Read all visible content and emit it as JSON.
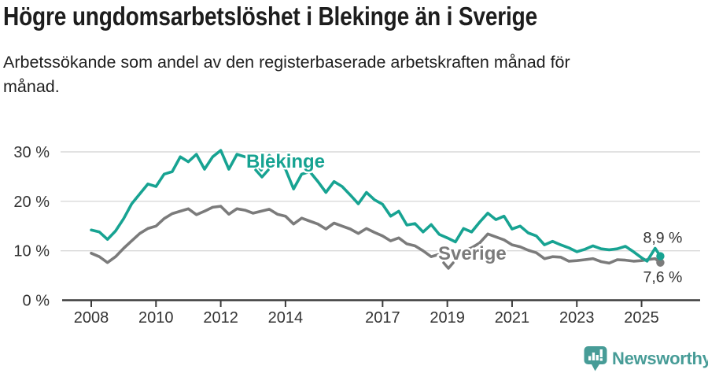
{
  "page": {
    "title": "Högre ungdomsarbetslöshet i Blekinge än i Sverige",
    "subtitle": "Arbetssökande som andel av den registerbaserade arbetskraften månad för månad."
  },
  "colors": {
    "blekinge": "#17a392",
    "sverige": "#7b7b7b",
    "axis": "#3c3c3c",
    "tick_text": "#333333",
    "grid": "#d9d9d9",
    "value_label": "#333333",
    "brand": "#479c97",
    "background": "#ffffff"
  },
  "footer": {
    "brand_name": "Newsworthy"
  },
  "chart_data": {
    "type": "line",
    "title": "Högre ungdomsarbetslöshet i Blekinge än i Sverige",
    "subtitle": "Arbetssökande som andel av den registerbaserade arbetskraften månad för månad.",
    "xlabel": "",
    "ylabel": "",
    "unit": "%",
    "grid": "horizontal",
    "legend_position": "inline-labels",
    "xlim": [
      2007.6,
      2026.3
    ],
    "ylim": [
      0,
      32
    ],
    "y_ticks": [
      {
        "value": 0,
        "label": "0 %"
      },
      {
        "value": 10,
        "label": "10 %"
      },
      {
        "value": 20,
        "label": "20 %"
      },
      {
        "value": 30,
        "label": "30 %"
      }
    ],
    "x_ticks": [
      {
        "value": 2008,
        "label": "2008"
      },
      {
        "value": 2010,
        "label": "2010"
      },
      {
        "value": 2012,
        "label": "2012"
      },
      {
        "value": 2014,
        "label": "2014"
      },
      {
        "value": 2017,
        "label": "2017"
      },
      {
        "value": 2019,
        "label": "2019"
      },
      {
        "value": 2021,
        "label": "2021"
      },
      {
        "value": 2023,
        "label": "2023"
      },
      {
        "value": 2025,
        "label": "2025"
      }
    ],
    "x": [
      2008.0,
      2008.25,
      2008.5,
      2008.75,
      2009.0,
      2009.25,
      2009.5,
      2009.75,
      2010.0,
      2010.25,
      2010.5,
      2010.75,
      2011.0,
      2011.25,
      2011.5,
      2011.75,
      2012.0,
      2012.25,
      2012.5,
      2012.75,
      2013.0,
      2013.25,
      2013.5,
      2013.75,
      2014.0,
      2014.25,
      2014.5,
      2014.75,
      2015.0,
      2015.25,
      2015.5,
      2015.75,
      2016.0,
      2016.25,
      2016.5,
      2016.75,
      2017.0,
      2017.25,
      2017.5,
      2017.75,
      2018.0,
      2018.25,
      2018.5,
      2018.75,
      2019.0,
      2019.25,
      2019.5,
      2019.75,
      2020.0,
      2020.25,
      2020.5,
      2020.75,
      2021.0,
      2021.25,
      2021.5,
      2021.75,
      2022.0,
      2022.25,
      2022.5,
      2022.75,
      2023.0,
      2023.25,
      2023.5,
      2023.75,
      2024.0,
      2024.25,
      2024.5,
      2024.75,
      2025.0,
      2025.17,
      2025.42,
      2025.58
    ],
    "series": [
      {
        "name": "Blekinge",
        "color": "#17a392",
        "end_label": "8,9 %",
        "values": [
          14.2,
          13.8,
          12.3,
          14.0,
          16.5,
          19.5,
          21.5,
          23.5,
          23.0,
          25.5,
          26.0,
          29.0,
          28.0,
          29.5,
          26.5,
          29.0,
          30.3,
          26.5,
          29.5,
          29.0,
          28.5,
          26.3,
          29.3,
          27.5,
          26.5,
          22.5,
          25.5,
          26.0,
          24.0,
          21.8,
          24.0,
          23.0,
          21.3,
          19.5,
          21.8,
          20.3,
          19.4,
          17.0,
          18.0,
          15.2,
          15.5,
          13.8,
          15.3,
          13.3,
          12.6,
          11.8,
          14.5,
          13.8,
          15.8,
          17.6,
          16.3,
          17.0,
          14.4,
          15.0,
          13.6,
          13.0,
          11.2,
          11.9,
          11.2,
          10.6,
          9.8,
          10.3,
          11.0,
          10.4,
          10.2,
          10.4,
          10.9,
          9.8,
          8.6,
          7.9,
          10.5,
          8.9
        ]
      },
      {
        "name": "Sverige",
        "color": "#7b7b7b",
        "end_label": "7,6 %",
        "values": [
          9.5,
          8.8,
          7.6,
          8.8,
          10.5,
          12.0,
          13.5,
          14.5,
          15.0,
          16.5,
          17.5,
          18.0,
          18.5,
          17.3,
          18.0,
          18.8,
          19.0,
          17.4,
          18.5,
          18.2,
          17.6,
          18.0,
          18.4,
          17.4,
          17.0,
          15.4,
          16.6,
          16.0,
          15.4,
          14.4,
          15.6,
          15.0,
          14.4,
          13.5,
          14.5,
          13.7,
          13.0,
          12.0,
          12.6,
          11.4,
          11.0,
          10.0,
          8.8,
          9.3,
          9.4,
          9.6,
          10.0,
          10.6,
          11.6,
          13.4,
          12.8,
          12.2,
          11.2,
          10.8,
          10.1,
          9.6,
          8.4,
          8.8,
          8.7,
          7.9,
          8.0,
          8.2,
          8.4,
          7.8,
          7.5,
          8.2,
          8.1,
          7.9,
          8.0,
          8.2,
          8.4,
          7.6
        ]
      }
    ]
  }
}
